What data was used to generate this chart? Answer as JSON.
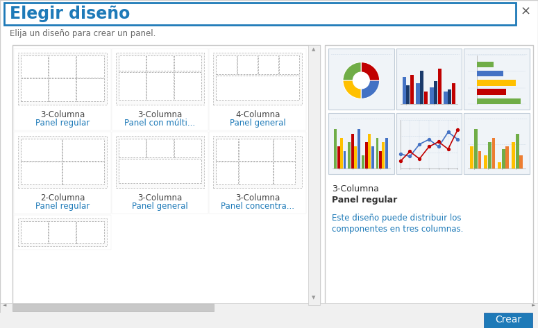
{
  "title": "Elegir diseño",
  "subtitle": "Elija un diseño para crear un panel.",
  "close_x": "×",
  "bg_color": "#f5f5f5",
  "dialog_bg": "#ffffff",
  "title_color": "#1e7ab8",
  "title_border_color": "#1e7ab8",
  "subtitle_color": "#666666",
  "button_text": "Crear",
  "button_color": "#1e7ab8",
  "button_text_color": "#ffffff",
  "left_panel_items": [
    {
      "label1": "3-Columna",
      "label2": "Panel regular",
      "type": "regular3"
    },
    {
      "label1": "3-Columna",
      "label2": "Panel con múlti...",
      "type": "multi3"
    },
    {
      "label1": "4-Columna",
      "label2": "Panel general",
      "type": "general4"
    },
    {
      "label1": "2-Columna",
      "label2": "Panel regular",
      "type": "regular2"
    },
    {
      "label1": "3-Columna",
      "label2": "Panel general",
      "type": "general3"
    },
    {
      "label1": "3-Columna",
      "label2": "Panel concentra...",
      "type": "concentrated3"
    }
  ],
  "partial_item_type": "regular3_small",
  "right_title1": "3-Columna",
  "right_title2": "Panel regular",
  "right_desc_line1": "Este diseño puede distribuir los",
  "right_desc_line2": "componentes en tres columnas.",
  "right_title1_color": "#333333",
  "right_title2_color": "#1e7ab8",
  "right_desc_color": "#1e7ab8"
}
